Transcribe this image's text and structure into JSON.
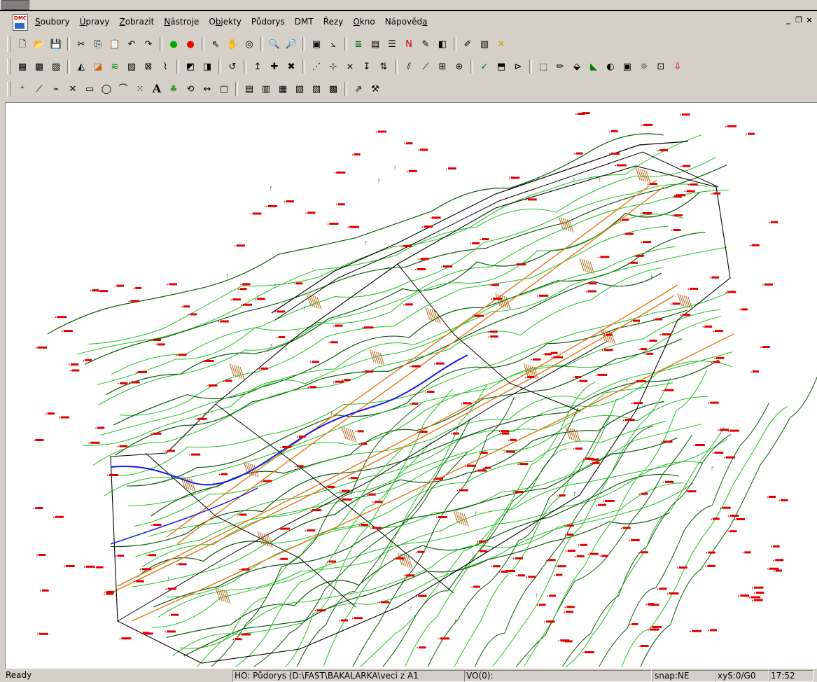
{
  "menu": {
    "items": [
      {
        "mn": "S",
        "rest": "oubory"
      },
      {
        "mn": "Ú",
        "rest": "pravy"
      },
      {
        "mn": "Z",
        "rest": "obrazit"
      },
      {
        "mn": "N",
        "rest": "ástroje"
      },
      {
        "pre": "O",
        "mn": "b",
        "rest": "jekty"
      },
      {
        "pre": "Půdorys"
      },
      {
        "pre": "DMT"
      },
      {
        "pre": "Řezy"
      },
      {
        "mn": "O",
        "rest": "kno"
      },
      {
        "pre": "Nápověd",
        "mn": "a"
      }
    ],
    "mdi_controls": [
      "_",
      "̈",
      "×"
    ]
  },
  "toolbars": [
    [
      "new-file-icon",
      "open-folder-icon",
      "save-icon",
      "|",
      "cut-icon",
      "copy-icon",
      "paste-icon",
      "undo-icon",
      "redo-icon",
      "|",
      "green-dot-icon",
      "red-dot-icon",
      "|",
      "select-arrow-icon",
      "pan-hand-icon",
      "zoom-window-icon",
      "|",
      "zoom-in-icon",
      "zoom-out-icon",
      "|",
      "window-icon",
      "measure-icon",
      "|",
      "layers-icon",
      "table-icon",
      "list-icon",
      "north-arrow-icon",
      "properties-icon",
      "export-icon",
      "|",
      "draw-icon",
      "book-icon",
      "delete-icon"
    ],
    [
      "pudorys-icon",
      "dmt-icon",
      "dmt2-icon",
      "|",
      "triangle-icon",
      "gradient-icon",
      "contour-icon",
      "hatch-icon",
      "section-icon",
      "profile-icon",
      "|",
      "layer-a-icon",
      "layer-b-icon",
      "|",
      "undo-dmt-icon",
      "|",
      "point-up-icon",
      "point-add-icon",
      "point-x-icon",
      "|",
      "line-point-icon",
      "line-add-icon",
      "line-x-icon",
      "line-down-icon",
      "line-split-icon",
      "|",
      "break-line-icon",
      "edge-icon",
      "grid-icon",
      "merge-icon",
      "|",
      "ok-icon",
      "bucket-icon",
      "filter-icon",
      "|",
      "dxf-icon",
      "brush-icon",
      "volume-icon",
      "terrain-icon",
      "shade-icon",
      "image-icon",
      "light-icon",
      "map-icon",
      "import-icon"
    ],
    [
      "point-number-icon",
      "line-tool-icon",
      "polyline-icon",
      "cross-icon",
      "rectangle-icon",
      "circle-icon",
      "arc-icon",
      "grid-select-icon",
      "text-a-icon",
      "tree-icon",
      "rotate-icon",
      "dimension-icon",
      "frame-icon",
      "|",
      "layer1-icon",
      "layer2-icon",
      "layer3-icon",
      "layer4-icon",
      "layer5-icon",
      "layer6-icon",
      "|",
      "folder-export-icon",
      "build-icon"
    ]
  ],
  "toolbar_glyphs": {
    "new-file-icon": "🗋",
    "open-folder-icon": "📂",
    "save-icon": "💾",
    "cut-icon": "✂",
    "copy-icon": "⎘",
    "paste-icon": "📋",
    "undo-icon": "↶",
    "redo-icon": "↷",
    "green-dot-icon": "●",
    "red-dot-icon": "●",
    "select-arrow-icon": "⇖",
    "pan-hand-icon": "✋",
    "zoom-window-icon": "◎",
    "zoom-in-icon": "🔍",
    "zoom-out-icon": "🔎",
    "window-icon": "▣",
    "measure-icon": "⦣",
    "layers-icon": "≣",
    "table-icon": "▤",
    "list-icon": "☰",
    "north-arrow-icon": "N",
    "properties-icon": "✎",
    "export-icon": "◧",
    "draw-icon": "✐",
    "book-icon": "▥",
    "delete-icon": "✕",
    "pudorys-icon": "▦",
    "dmt-icon": "▩",
    "dmt2-icon": "▨",
    "triangle-icon": "◭",
    "gradient-icon": "◪",
    "contour-icon": "≋",
    "hatch-icon": "▧",
    "section-icon": "⊠",
    "profile-icon": "⌇",
    "layer-a-icon": "◩",
    "layer-b-icon": "◨",
    "undo-dmt-icon": "↺",
    "point-up-icon": "↥",
    "point-add-icon": "✚",
    "point-x-icon": "✖",
    "line-point-icon": "⋰",
    "line-add-icon": "⊹",
    "line-x-icon": "⨯",
    "line-down-icon": "↧",
    "line-split-icon": "⇅",
    "break-line-icon": "⫽",
    "edge-icon": "⟋",
    "grid-icon": "⊞",
    "merge-icon": "⊕",
    "ok-icon": "✓",
    "bucket-icon": "⬒",
    "filter-icon": "⊳",
    "dxf-icon": "⬚",
    "brush-icon": "✏",
    "volume-icon": "⬙",
    "terrain-icon": "◣",
    "shade-icon": "◐",
    "image-icon": "▣",
    "light-icon": "☼",
    "map-icon": "⊡",
    "import-icon": "⇩",
    "point-number-icon": "⁺",
    "line-tool-icon": "⟋",
    "polyline-icon": "⌁",
    "cross-icon": "✕",
    "rectangle-icon": "▭",
    "circle-icon": "◯",
    "arc-icon": "⌒",
    "grid-select-icon": "⁙",
    "text-a-icon": "A",
    "tree-icon": "♣",
    "rotate-icon": "⟲",
    "dimension-icon": "↔",
    "frame-icon": "▢",
    "layer1-icon": "▤",
    "layer2-icon": "▥",
    "layer3-icon": "▦",
    "layer4-icon": "▧",
    "layer5-icon": "▨",
    "layer6-icon": "▩",
    "folder-export-icon": "⇗",
    "build-icon": "⚒"
  },
  "status": {
    "ready": "Ready",
    "document": "HO: Půdorys (D:\\FAST\\BAKALARKA\\veci z A1",
    "vo": "VO(0):",
    "snap": "snap:NE",
    "xys": "xyS:0/G0",
    "time": "17:52"
  },
  "colors": {
    "contour_major": "#0b5a0b",
    "contour_minor": "#22c122",
    "road": "#e07a1a",
    "stream": "#1a1ae6",
    "point_label": "#e00000",
    "boundary": "#000000"
  }
}
